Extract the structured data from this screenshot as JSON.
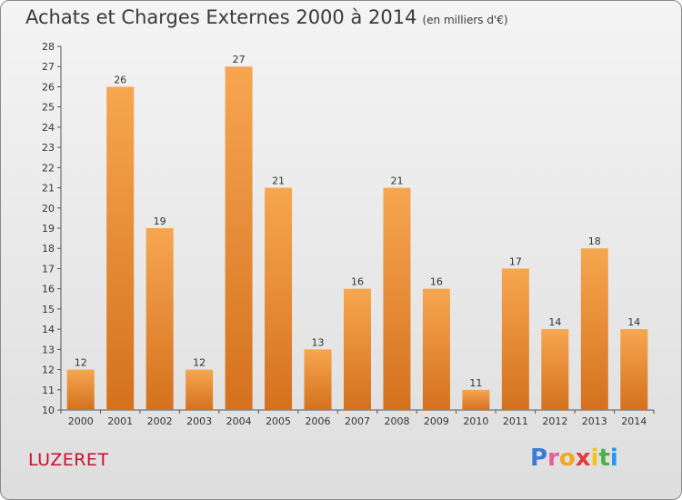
{
  "title": "Achats et Charges Externes 2000 à 2014",
  "subtitle": "(en milliers d'€)",
  "location": "LUZERET",
  "brand": "Proxiti",
  "colors": {
    "bar_top": "#f7a650",
    "bar_bottom": "#d4711e",
    "location": "#c8102e"
  },
  "chart_data": {
    "type": "bar",
    "title": "Achats et Charges Externes 2000 à 2014",
    "subtitle": "(en milliers d'€)",
    "categories": [
      "2000",
      "2001",
      "2002",
      "2003",
      "2004",
      "2005",
      "2006",
      "2007",
      "2008",
      "2009",
      "2010",
      "2011",
      "2012",
      "2013",
      "2014"
    ],
    "values": [
      12,
      26,
      19,
      12,
      27,
      21,
      13,
      16,
      21,
      16,
      11,
      17,
      14,
      18,
      14
    ],
    "ylim": [
      10,
      28
    ],
    "yticks": [
      10,
      11,
      12,
      13,
      14,
      15,
      16,
      17,
      18,
      19,
      20,
      21,
      22,
      23,
      24,
      25,
      26,
      27,
      28
    ],
    "grid": false,
    "data_labels": true
  }
}
